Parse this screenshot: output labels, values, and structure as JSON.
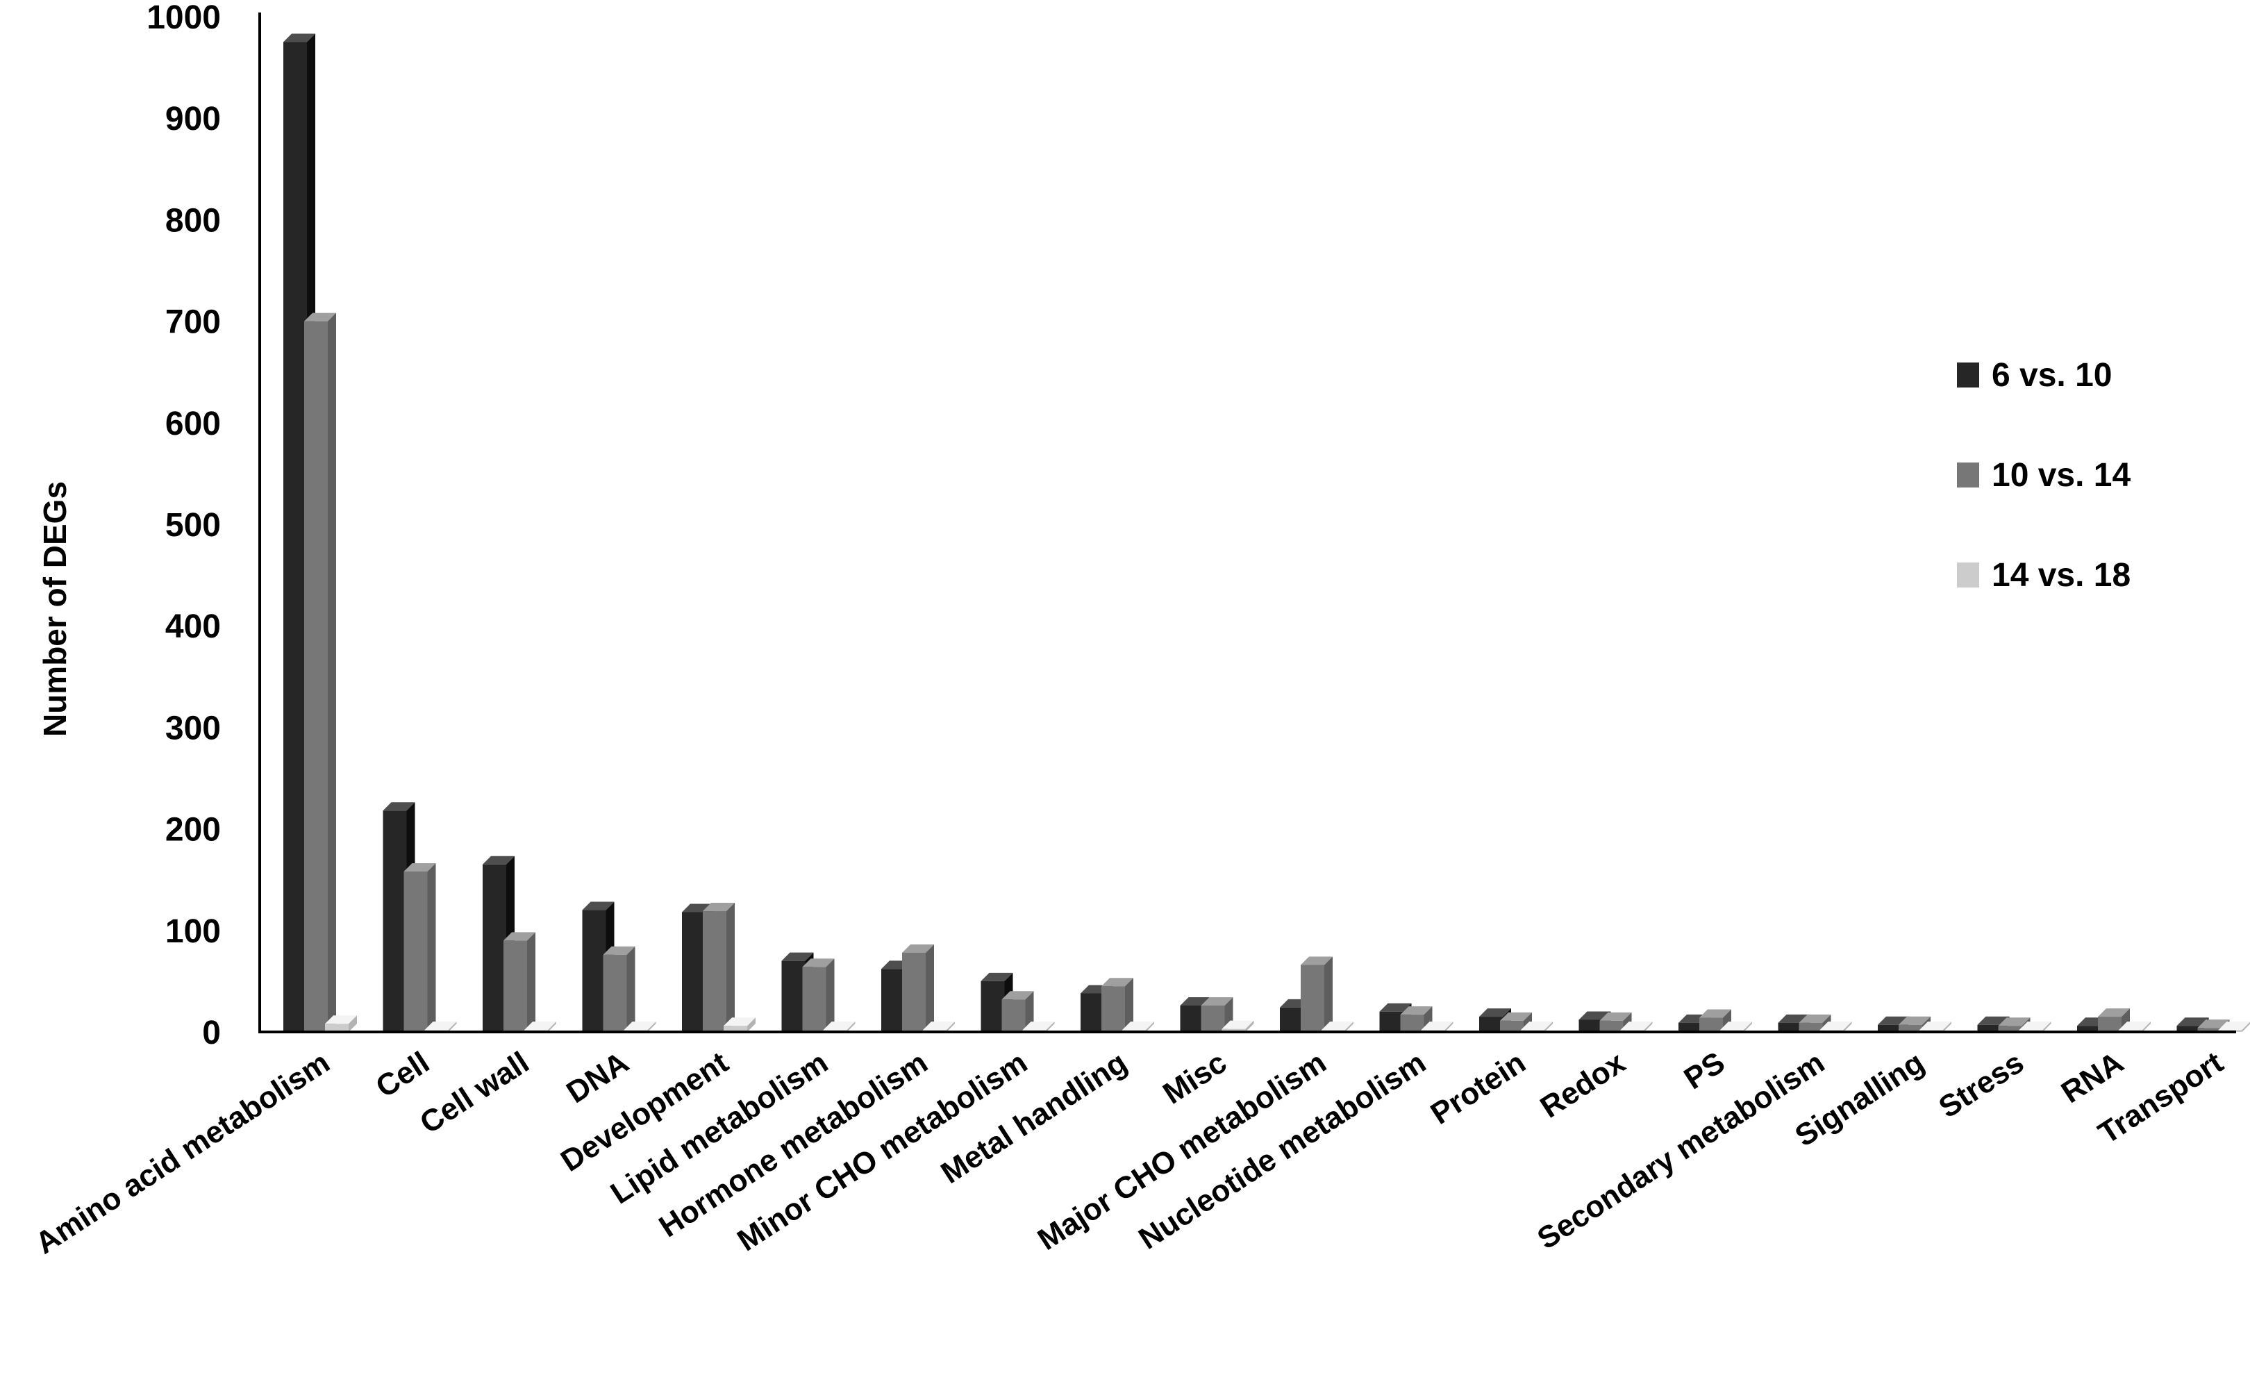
{
  "chart_data": {
    "type": "bar",
    "title": "",
    "xlabel": "",
    "ylabel": "Number of DEGs",
    "ylim": [
      0,
      1000
    ],
    "yticks": [
      "0",
      "100",
      "200",
      "300",
      "400",
      "500",
      "600",
      "700",
      "800",
      "900",
      "1000"
    ],
    "grid": false,
    "legend_position": "right",
    "categories": [
      "Amino acid metabolism",
      "Cell",
      "Cell wall",
      "DNA",
      "Development",
      "Lipid metabolism",
      "Hormone metabolism",
      "Minor CHO metabolism",
      "Metal handling",
      "Misc",
      "Major CHO metabolism",
      "Nucleotide metabolism",
      "Protein",
      "Redox",
      "PS",
      "Secondary metabolism",
      "Signalling",
      "Stress",
      "RNA",
      "Transport"
    ],
    "series": [
      {
        "name": "6 vs. 10",
        "color": "#262626",
        "values": [
          975,
          218,
          165,
          120,
          118,
          70,
          62,
          50,
          38,
          26,
          24,
          20,
          15,
          12,
          9,
          9,
          7,
          7,
          6,
          6
        ]
      },
      {
        "name": "10 vs. 14",
        "color": "#777777",
        "values": [
          700,
          158,
          90,
          76,
          119,
          64,
          78,
          32,
          45,
          26,
          66,
          17,
          11,
          11,
          14,
          9,
          7,
          6,
          15,
          4
        ]
      },
      {
        "name": "14 vs. 18",
        "color": "#cccccc",
        "values": [
          8,
          2,
          2,
          2,
          6,
          2,
          2,
          2,
          2,
          3,
          2,
          2,
          2,
          2,
          2,
          2,
          2,
          2,
          2,
          2
        ]
      }
    ]
  }
}
